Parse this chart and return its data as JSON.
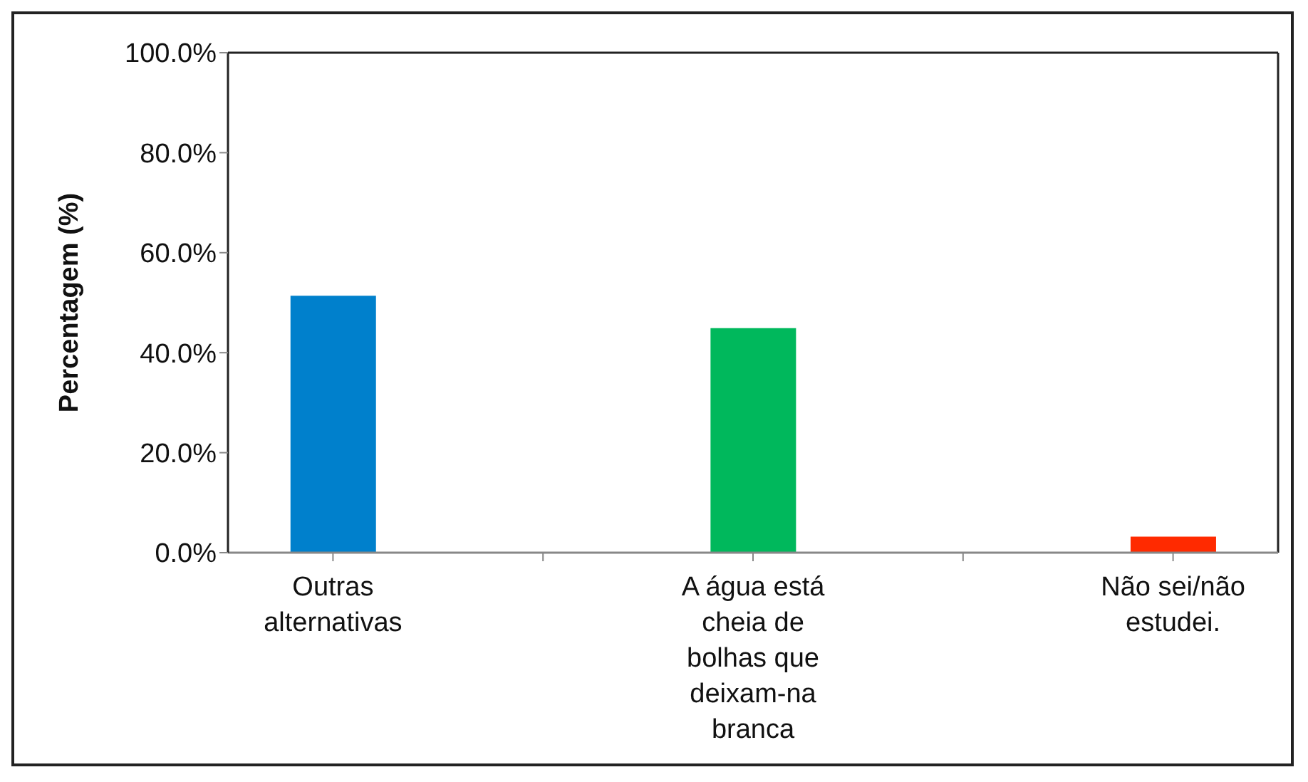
{
  "chart_data": {
    "type": "bar",
    "ylabel": "Percentagem (%)",
    "categories": [
      "Outras alternativas",
      null,
      "A água está cheia de bolhas que deixam-na branca",
      null,
      "Não sei/não estudei."
    ],
    "values": [
      51.4,
      null,
      44.9,
      null,
      3.2
    ],
    "colors": [
      "#0080cc",
      null,
      "#00b85c",
      null,
      "#ff2a00"
    ],
    "ylim": [
      0,
      100
    ],
    "yticks": [
      {
        "value": 0,
        "label": "0.0%"
      },
      {
        "value": 20,
        "label": "20.0%"
      },
      {
        "value": 40,
        "label": "40.0%"
      },
      {
        "value": 60,
        "label": "60.0%"
      },
      {
        "value": 80,
        "label": "80.0%"
      },
      {
        "value": 100,
        "label": "100.0%"
      }
    ],
    "grid": false,
    "legend": false
  }
}
